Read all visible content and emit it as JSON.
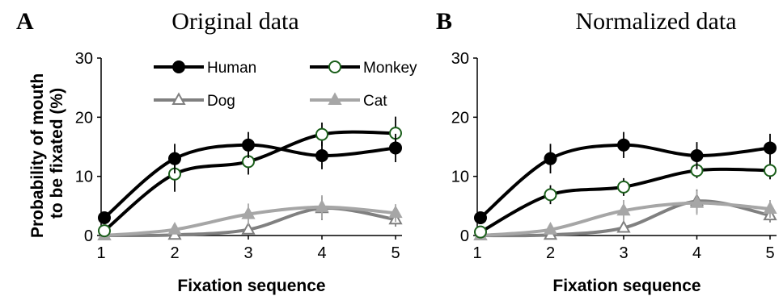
{
  "colors": {
    "human": "#000000",
    "monkey": "#000000",
    "dog": "#808080",
    "cat": "#a6a6a6",
    "marker_fill_white": "#ffffff",
    "monkey_marker_edge": "#1a5e1a"
  },
  "legend": {
    "items": [
      {
        "name": "Human",
        "marker": "filled-circle",
        "color": "#000000"
      },
      {
        "name": "Monkey",
        "marker": "open-circle",
        "color": "#000000"
      },
      {
        "name": "Dog",
        "marker": "open-triangle",
        "color": "#808080"
      },
      {
        "name": "Cat",
        "marker": "filled-triangle",
        "color": "#a6a6a6"
      }
    ]
  },
  "chart_data": [
    {
      "type": "line",
      "panel_letter": "A",
      "title": "Original data",
      "xlabel": "Fixation sequence",
      "ylabel": "Probability of mouth\nto be fixated (%)",
      "x": [
        1,
        2,
        3,
        4,
        5
      ],
      "xlim": [
        1,
        5
      ],
      "ylim": [
        0,
        30
      ],
      "yticks": [
        0,
        10,
        20,
        30
      ],
      "xticks": [
        1,
        2,
        3,
        4,
        5
      ],
      "legend_position": "top",
      "series": [
        {
          "name": "Human",
          "values": [
            3,
            13,
            15.3,
            13.5,
            14.8
          ],
          "error": [
            0.6,
            2.5,
            2.2,
            2.3,
            2.4
          ]
        },
        {
          "name": "Monkey",
          "values": [
            0.8,
            10.4,
            12.5,
            17.1,
            17.3
          ],
          "error": [
            0.5,
            3.0,
            2.2,
            2.0,
            2.8
          ]
        },
        {
          "name": "Dog",
          "values": [
            0,
            0.1,
            1,
            4.6,
            2.7
          ],
          "error": [
            0.2,
            0.3,
            0.5,
            2.0,
            1.2
          ]
        },
        {
          "name": "Cat",
          "values": [
            0,
            1,
            3.6,
            4.8,
            3.8
          ],
          "error": [
            0.2,
            0.5,
            1.8,
            2.0,
            1.5
          ]
        }
      ]
    },
    {
      "type": "line",
      "panel_letter": "B",
      "title": "Normalized data",
      "xlabel": "Fixation sequence",
      "ylabel": "",
      "x": [
        1,
        2,
        3,
        4,
        5
      ],
      "xlim": [
        1,
        5
      ],
      "ylim": [
        0,
        30
      ],
      "yticks": [
        0,
        10,
        20,
        30
      ],
      "xticks": [
        1,
        2,
        3,
        4,
        5
      ],
      "series": [
        {
          "name": "Human",
          "values": [
            3,
            13,
            15.3,
            13.5,
            14.8
          ],
          "error": [
            0.6,
            2.5,
            2.2,
            2.3,
            2.4
          ]
        },
        {
          "name": "Monkey",
          "values": [
            0.6,
            6.9,
            8.2,
            11,
            11
          ],
          "error": [
            0.4,
            1.6,
            1.5,
            1.3,
            1.5
          ]
        },
        {
          "name": "Dog",
          "values": [
            0,
            0.1,
            1.3,
            5.8,
            3.4
          ],
          "error": [
            0.2,
            0.3,
            0.6,
            2.0,
            1.2
          ]
        },
        {
          "name": "Cat",
          "values": [
            0,
            1,
            4.2,
            5.5,
            4.5
          ],
          "error": [
            0.2,
            0.5,
            1.8,
            2.0,
            1.5
          ]
        }
      ]
    }
  ]
}
